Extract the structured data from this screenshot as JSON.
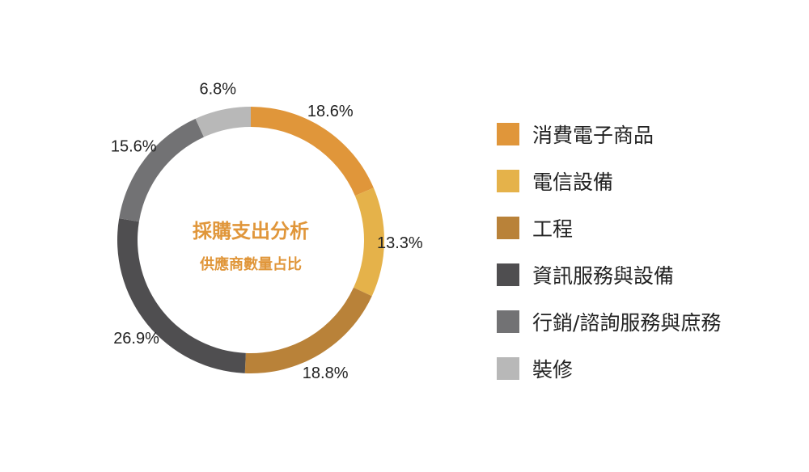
{
  "chart_data": {
    "type": "pie",
    "title": "採購支出分析",
    "subtitle": "供應商數量占比",
    "categories": [
      "消費電子商品",
      "電信設備",
      "工程",
      "資訊服務與設備",
      "行銷/諮詢服務與庶務",
      "裝修"
    ],
    "values": [
      18.6,
      13.3,
      18.8,
      26.9,
      15.6,
      6.8
    ],
    "value_labels": [
      "18.6%",
      "13.3%",
      "18.8%",
      "26.9%",
      "15.6%",
      "6.8%"
    ],
    "colors": [
      "#E0963A",
      "#E5B24A",
      "#B98239",
      "#4F4E50",
      "#727274",
      "#B8B8B8"
    ],
    "unit": "%",
    "style": "donut",
    "start": "12 o'clock, clockwise",
    "legend_position": "right",
    "title_color": "#E0963A"
  }
}
